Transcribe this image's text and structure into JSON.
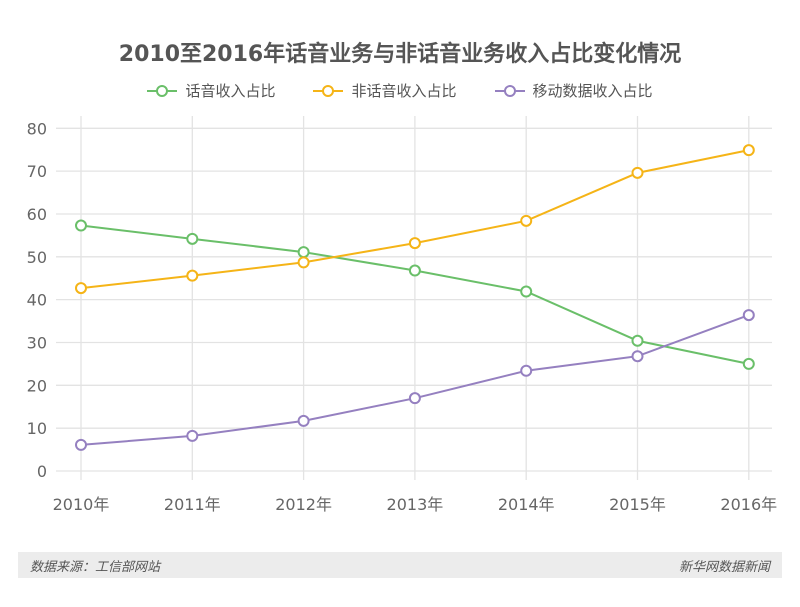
{
  "chart_data": {
    "type": "line",
    "title": "2010至2016年话音业务与非话音业务收入占比变化情况",
    "categories": [
      "2010年",
      "2011年",
      "2012年",
      "2013年",
      "2014年",
      "2015年",
      "2016年"
    ],
    "ylim": [
      0,
      80
    ],
    "yticks": [
      0,
      10,
      20,
      30,
      40,
      50,
      60,
      70,
      80
    ],
    "grid": true,
    "legend_position": "top",
    "series": [
      {
        "name": "话音收入占比",
        "color": "#6abf69",
        "values": [
          57.3,
          54.2,
          51.1,
          46.8,
          41.9,
          30.4,
          25.0
        ]
      },
      {
        "name": "非话音收入占比",
        "color": "#f5b417",
        "values": [
          42.7,
          45.6,
          48.7,
          53.2,
          58.4,
          69.6,
          74.9
        ]
      },
      {
        "name": "移动数据收入占比",
        "color": "#9580c0",
        "values": [
          6.1,
          8.2,
          11.7,
          17.0,
          23.4,
          26.8,
          36.4
        ]
      }
    ]
  },
  "footer": {
    "source": "数据来源：工信部网站",
    "brand": "新华网数据新闻"
  }
}
